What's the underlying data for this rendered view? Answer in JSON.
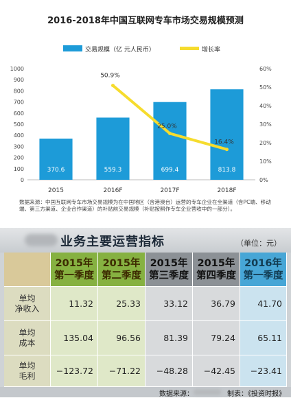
{
  "chart_data": {
    "type": "bar+line",
    "title": "2016-2018年中国互联网专车市场交易规模预测",
    "categories": [
      "2015",
      "2016F",
      "2017F",
      "2018F"
    ],
    "series": [
      {
        "name": "交易规模（亿 元人民币）",
        "type": "bar",
        "axis": "left",
        "values": [
          370.6,
          559.3,
          699.4,
          813.8
        ],
        "labels": [
          "370.6",
          "559.3",
          "699.4",
          "813.8"
        ]
      },
      {
        "name": "增长率",
        "type": "line",
        "axis": "right",
        "x": [
          "2016F",
          "2017F",
          "2018F"
        ],
        "values": [
          50.9,
          25.0,
          16.4
        ],
        "labels": [
          "50.9%",
          "25.0%",
          "16.4%"
        ]
      }
    ],
    "y_left": {
      "min": 0,
      "max": 1000,
      "ticks": [
        "0",
        "100",
        "200",
        "300",
        "400",
        "500",
        "600",
        "700",
        "800",
        "900",
        "1000"
      ]
    },
    "y_right": {
      "min": 0,
      "max": 60,
      "ticks": [
        "0%",
        "10%",
        "20%",
        "30%",
        "40%",
        "50%",
        "60%"
      ]
    },
    "colors": {
      "bar": "#1d9bd8",
      "line": "#f6dc2e",
      "axis_text": "#444444"
    },
    "legend": "top",
    "grid": false,
    "source_note": "数据来源：中国互联网专车市场交易规模为在中国地区（含港澳台）运营的专车企业在全渠道（含PC端、移动端、第三方渠道、企业合作渠道）的补贴前交易规模（补贴按照作专车企业营收中的一部分）。"
  },
  "table": {
    "title": "业务主要运营指标",
    "unit": "（单位：元）",
    "columns": [
      {
        "year": "2015年",
        "quarter": "第一季度"
      },
      {
        "year": "2015年",
        "quarter": "第二季度"
      },
      {
        "year": "2015年",
        "quarter": "第三季度"
      },
      {
        "year": "2015年",
        "quarter": "第四季度"
      },
      {
        "year": "2016年",
        "quarter": "第一季度"
      }
    ],
    "rows": [
      {
        "label1": "单均",
        "label2": "净收入",
        "values": [
          "11.32",
          "25.33",
          "33.12",
          "36.79",
          "41.70"
        ]
      },
      {
        "label1": "单均",
        "label2": "成本",
        "values": [
          "135.04",
          "96.56",
          "81.39",
          "79.24",
          "65.11"
        ]
      },
      {
        "label1": "单均",
        "label2": "毛利",
        "values": [
          "−123.72",
          "−71.22",
          "−48.28",
          "−42.45",
          "−23.41"
        ]
      }
    ],
    "footer_source": "数据来源：",
    "footer_credit": "制表：《投资时报》"
  }
}
